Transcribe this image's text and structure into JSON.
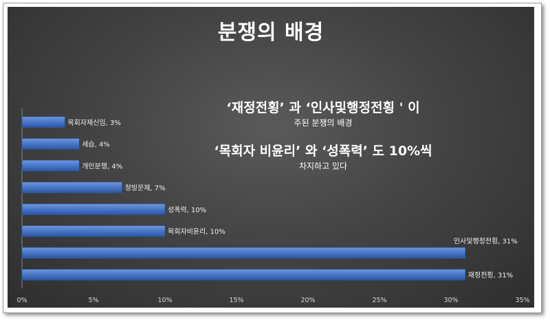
{
  "chart_data": {
    "type": "bar",
    "orientation": "horizontal",
    "title": "분쟁의 배경",
    "categories": [
      "재정전횡",
      "인사및행정전횡",
      "목회자비윤리",
      "성폭력",
      "청빙문제",
      "개인분쟁",
      "세습",
      "목회자재신임"
    ],
    "values": [
      31,
      31,
      10,
      10,
      7,
      4,
      4,
      3
    ],
    "data_labels": [
      "재정전횡, 31%",
      "인사및행정전횡, 31%",
      "목회자비윤리, 10%",
      "성폭력, 10%",
      "청빙문제, 7%",
      "개인분쟁, 4%",
      "세습, 4%",
      "목회자재신임, 3%"
    ],
    "x_ticks": [
      "0%",
      "5%",
      "10%",
      "15%",
      "20%",
      "25%",
      "30%",
      "35%"
    ],
    "xlim": [
      0,
      35
    ],
    "bar_color": "#4472c4",
    "grid": false,
    "legend": "none",
    "annotations": [
      "‘재정전횡’ 과 ‘인사및행정전횡 ' 이",
      "주된 분쟁의 배경",
      "‘목회자 비윤리’ 와 ‘성폭력’ 도 10%씩",
      "차지하고 있다"
    ]
  }
}
